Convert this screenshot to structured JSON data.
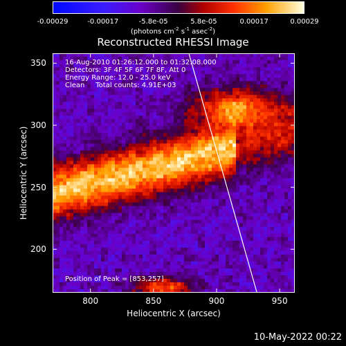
{
  "colorbar": {
    "ticks": [
      "-0.00029",
      "-0.00017",
      "-5.8e-05",
      "5.8e-05",
      "0.00017",
      "0.00029"
    ],
    "units_html": "(photons cm<sup style='font-size:7px'>-2</sup> s<sup style='font-size:7px'>-1</sup> asec<sup style='font-size:7px'>-2</sup>)",
    "units": "(photons cm-2 s-1 asec-2)"
  },
  "chart_data": {
    "type": "heatmap",
    "title": "Reconstructed RHESSI Image",
    "xlabel": "Heliocentric X (arcsec)",
    "ylabel": "Heliocentric Y (arcsec)",
    "xlim": [
      770,
      962
    ],
    "ylim": [
      165,
      358
    ],
    "xticks": [
      800,
      850,
      900,
      950
    ],
    "yticks": [
      200,
      250,
      300,
      350
    ],
    "colorbar_range": [
      -0.00029,
      0.00029
    ],
    "limb_line": [
      [
        878,
        358
      ],
      [
        932,
        165
      ]
    ],
    "annotations": [
      "16-Aug-2010 01:26:12.000 to 01:32:08.000",
      "Detectors: 3F 4F 5F 6F 7F 8F, Att 0",
      "Energy Range: 12.0 - 25.0 keV",
      "Clean     Total counts: 4.91E+03"
    ],
    "peak_label": "Position of Peak = [853,257]",
    "peak": [
      853,
      257
    ]
  },
  "footer_date": "10-May-2022 00:22"
}
